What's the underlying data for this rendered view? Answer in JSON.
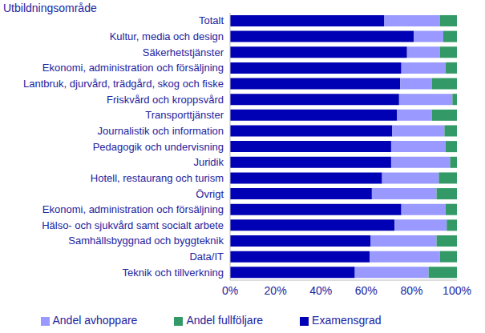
{
  "chart_data": {
    "type": "bar",
    "orientation": "horizontal",
    "stacked": true,
    "y_label": "Utbildningsområde",
    "categories": [
      "Totalt",
      "Kultur, media och design",
      "Säkerhetstjänster",
      "Ekonomi, administration och försäljning",
      "Lantbruk, djurvård, trädgård, skog och fiske",
      "Friskvård och kroppsvård",
      "Transporttjänster",
      "Journalistik och information",
      "Pedagogik och undervisning",
      "Juridik",
      "Hotell, restaurang och turism",
      "Övrigt",
      "Ekonomi, administration och försäljning",
      "Hälso- och sjukvård samt socialt arbete",
      "Samhällsbyggnad och byggteknik",
      "Data/IT",
      "Teknik och tillverkning"
    ],
    "series": [
      {
        "name": "Examensgrad",
        "color": "#0000b4",
        "values": [
          68,
          81,
          78,
          75.5,
          75,
          74.5,
          73.5,
          71.5,
          71,
          71,
          67,
          62.5,
          75.5,
          72.5,
          62,
          61.5,
          55
        ]
      },
      {
        "name": "Andel avhoppare",
        "color": "#9999ff",
        "values": [
          24.5,
          13,
          14.5,
          19.5,
          14,
          23.5,
          15.5,
          23,
          24,
          26,
          25,
          28.5,
          19.5,
          23,
          29,
          31,
          32.5
        ]
      },
      {
        "name": "Andel fullföljare",
        "color": "#339966",
        "values": [
          7.5,
          6,
          7.5,
          5,
          11,
          2,
          11,
          5.5,
          5,
          3,
          8,
          9,
          5,
          4.5,
          9,
          7.5,
          12.5
        ]
      }
    ],
    "xlim": [
      0,
      100
    ],
    "xticks": [
      {
        "value": 0,
        "label": "0%"
      },
      {
        "value": 20,
        "label": "20%"
      },
      {
        "value": 40,
        "label": "40%"
      },
      {
        "value": 60,
        "label": "60%"
      },
      {
        "value": 80,
        "label": "80%"
      },
      {
        "value": 100,
        "label": "100%"
      }
    ],
    "grid": false,
    "legend": "bottom"
  }
}
